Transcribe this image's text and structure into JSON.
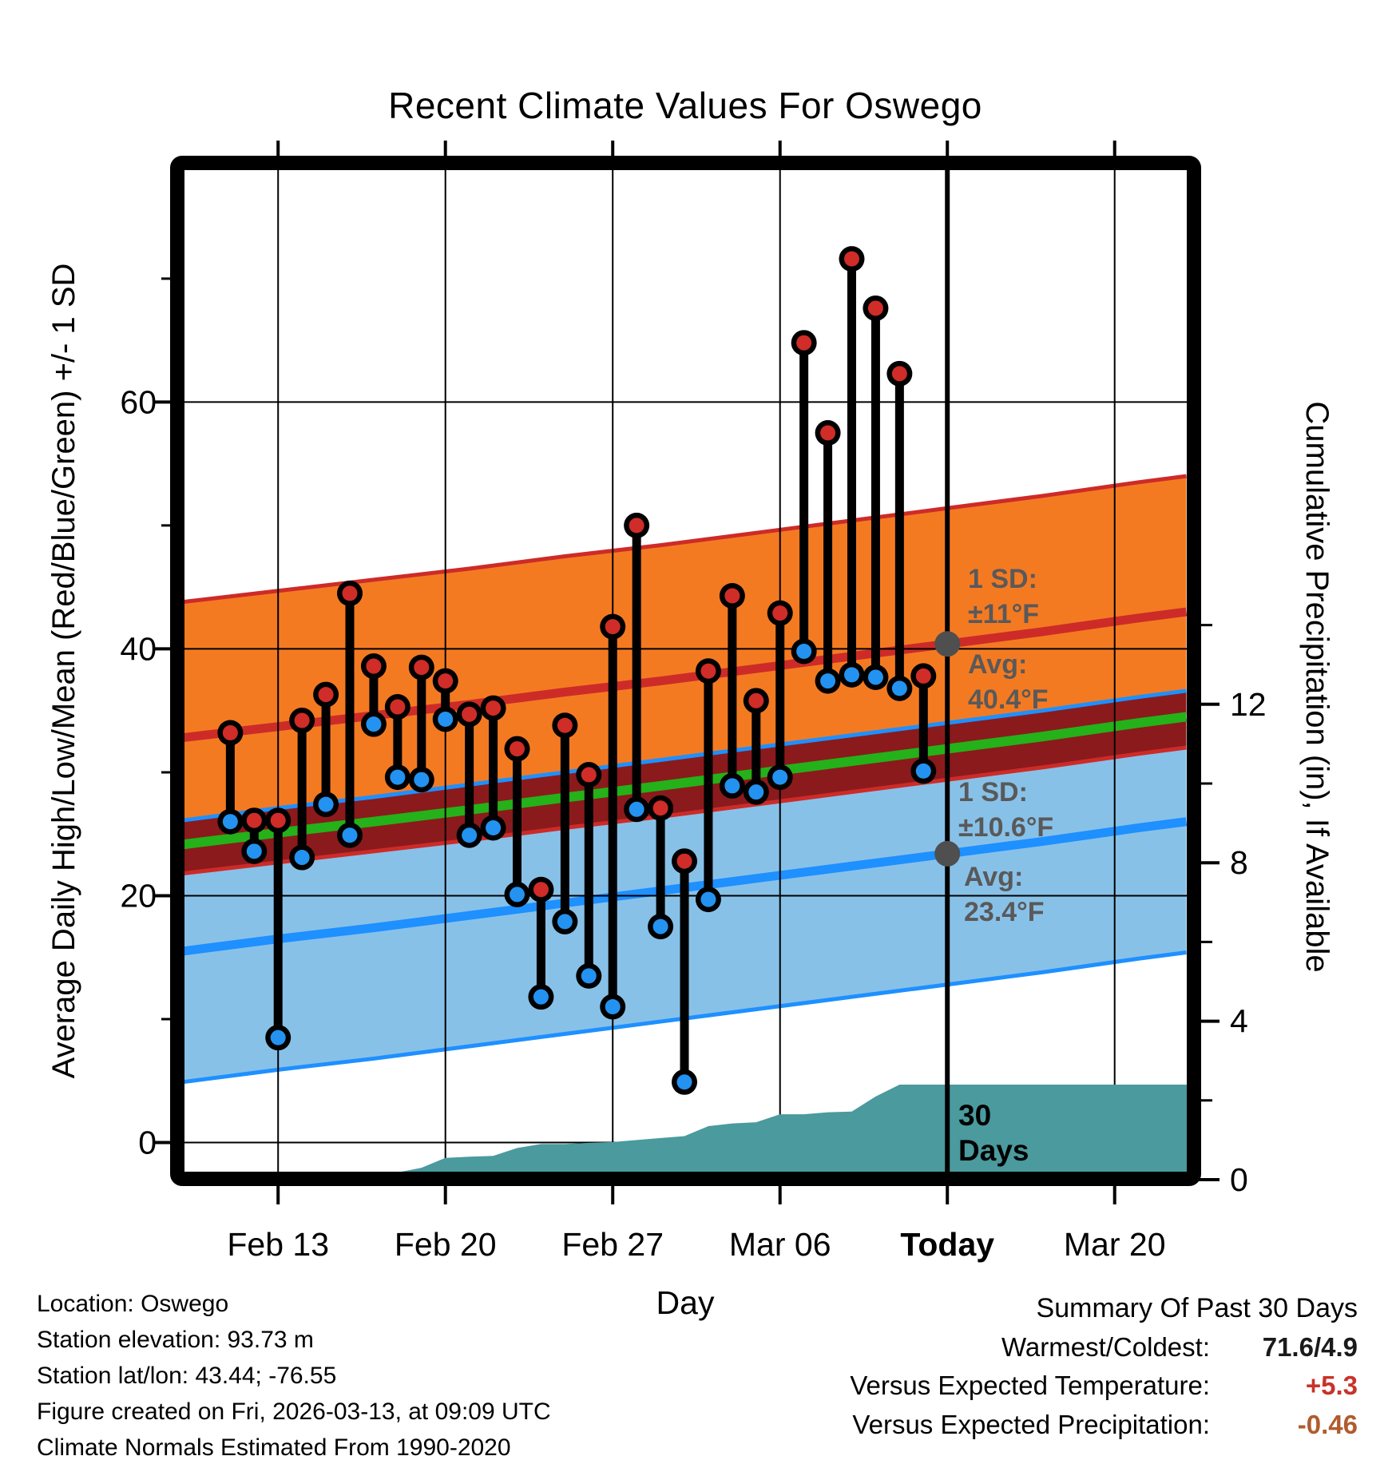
{
  "title": "Recent Climate Values For Oswego",
  "axes": {
    "x_label": "Day",
    "y_left_label": "Average Daily High/Low/Mean (Red/Blue/Green) +/- 1 SD",
    "y_right_label": "Cumulative Precipitation (in), If Available",
    "x_ticks": [
      {
        "label": "Feb 13",
        "offset": 0,
        "bold": false
      },
      {
        "label": "Feb 20",
        "offset": 7,
        "bold": false
      },
      {
        "label": "Feb 27",
        "offset": 14,
        "bold": false
      },
      {
        "label": "Mar 06",
        "offset": 21,
        "bold": false
      },
      {
        "label": "Today",
        "offset": 28,
        "bold": true
      },
      {
        "label": "Mar 20",
        "offset": 35,
        "bold": false
      }
    ],
    "y_left_ticks": [
      0,
      20,
      40,
      60
    ],
    "y_left_minor_ticks": [
      10,
      30,
      50,
      70
    ],
    "y_right_ticks": [
      0,
      4,
      8,
      12
    ],
    "y_right_minor_ticks": [
      2,
      6,
      10,
      14
    ]
  },
  "chart_data": {
    "type": "combo",
    "temp_axis": {
      "unit": "°F",
      "labeled_ticks": [
        0,
        20,
        40,
        60
      ]
    },
    "precip_axis": {
      "unit": "in",
      "labeled_ticks": [
        0,
        4,
        8,
        12
      ]
    },
    "today_offset": 28,
    "days": [
      {
        "date": "Feb 11",
        "offset": -2,
        "high": 33.2,
        "low": 26.0
      },
      {
        "date": "Feb 12",
        "offset": -1,
        "high": 26.1,
        "low": 23.6
      },
      {
        "date": "Feb 13",
        "offset": 0,
        "high": 26.1,
        "low": 8.5
      },
      {
        "date": "Feb 14",
        "offset": 1,
        "high": 34.2,
        "low": 23.1
      },
      {
        "date": "Feb 15",
        "offset": 2,
        "high": 36.3,
        "low": 27.4
      },
      {
        "date": "Feb 16",
        "offset": 3,
        "high": 44.5,
        "low": 24.9
      },
      {
        "date": "Feb 17",
        "offset": 4,
        "high": 38.6,
        "low": 33.9
      },
      {
        "date": "Feb 18",
        "offset": 5,
        "high": 35.3,
        "low": 29.6
      },
      {
        "date": "Feb 19",
        "offset": 6,
        "high": 38.5,
        "low": 29.4
      },
      {
        "date": "Feb 20",
        "offset": 7,
        "high": 37.4,
        "low": 34.3
      },
      {
        "date": "Feb 21",
        "offset": 8,
        "high": 34.7,
        "low": 24.9
      },
      {
        "date": "Feb 22",
        "offset": 9,
        "high": 35.2,
        "low": 25.5
      },
      {
        "date": "Feb 23",
        "offset": 10,
        "high": 31.9,
        "low": 20.1
      },
      {
        "date": "Feb 24",
        "offset": 11,
        "high": 20.5,
        "low": 11.8
      },
      {
        "date": "Feb 25",
        "offset": 12,
        "high": 33.8,
        "low": 17.9
      },
      {
        "date": "Feb 26",
        "offset": 13,
        "high": 29.8,
        "low": 13.5
      },
      {
        "date": "Feb 27",
        "offset": 14,
        "high": 41.8,
        "low": 11.0
      },
      {
        "date": "Feb 28",
        "offset": 15,
        "high": 50.0,
        "low": 27.0
      },
      {
        "date": "Mar 01",
        "offset": 16,
        "high": 27.1,
        "low": 17.5
      },
      {
        "date": "Mar 02",
        "offset": 17,
        "high": 22.8,
        "low": 4.9
      },
      {
        "date": "Mar 03",
        "offset": 18,
        "high": 38.2,
        "low": 19.7
      },
      {
        "date": "Mar 04",
        "offset": 19,
        "high": 44.3,
        "low": 28.9
      },
      {
        "date": "Mar 05",
        "offset": 20,
        "high": 35.8,
        "low": 28.4
      },
      {
        "date": "Mar 06",
        "offset": 21,
        "high": 42.9,
        "low": 29.6
      },
      {
        "date": "Mar 07",
        "offset": 22,
        "high": 64.8,
        "low": 39.8
      },
      {
        "date": "Mar 08",
        "offset": 23,
        "high": 57.5,
        "low": 37.4
      },
      {
        "date": "Mar 09",
        "offset": 24,
        "high": 71.6,
        "low": 37.9
      },
      {
        "date": "Mar 10",
        "offset": 25,
        "high": 67.6,
        "low": 37.7
      },
      {
        "date": "Mar 11",
        "offset": 26,
        "high": 62.3,
        "low": 36.8
      },
      {
        "date": "Mar 12",
        "offset": 27,
        "high": 37.8,
        "low": 30.1
      }
    ],
    "normals": {
      "offsets": [
        -4,
        0,
        4,
        8,
        12,
        16,
        20,
        24,
        28,
        32,
        36,
        38
      ],
      "high_avg": [
        32.8,
        33.7,
        34.6,
        35.5,
        36.5,
        37.4,
        38.4,
        39.4,
        40.4,
        41.4,
        42.5,
        43.0
      ],
      "low_avg": [
        15.5,
        16.5,
        17.4,
        18.4,
        19.4,
        20.4,
        21.4,
        22.4,
        23.4,
        24.4,
        25.5,
        26.0
      ],
      "high_sd": 11.0,
      "low_sd": 10.6,
      "high_avg_today": 40.4,
      "low_avg_today": 23.4
    },
    "precip": {
      "points": [
        {
          "offset": 5,
          "value": 0.0
        },
        {
          "offset": 6,
          "value": 0.3
        },
        {
          "offset": 7,
          "value": 0.55
        },
        {
          "offset": 8,
          "value": 0.58
        },
        {
          "offset": 9,
          "value": 0.6
        },
        {
          "offset": 10,
          "value": 0.8
        },
        {
          "offset": 11,
          "value": 0.9
        },
        {
          "offset": 12,
          "value": 0.9
        },
        {
          "offset": 13,
          "value": 0.93
        },
        {
          "offset": 14,
          "value": 0.95
        },
        {
          "offset": 15,
          "value": 1.0
        },
        {
          "offset": 16,
          "value": 1.05
        },
        {
          "offset": 17,
          "value": 1.1
        },
        {
          "offset": 18,
          "value": 1.35
        },
        {
          "offset": 19,
          "value": 1.42
        },
        {
          "offset": 20,
          "value": 1.45
        },
        {
          "offset": 21,
          "value": 1.65
        },
        {
          "offset": 22,
          "value": 1.65
        },
        {
          "offset": 23,
          "value": 1.7
        },
        {
          "offset": 24,
          "value": 1.72
        },
        {
          "offset": 25,
          "value": 2.1
        },
        {
          "offset": 26,
          "value": 2.4
        },
        {
          "offset": 27,
          "value": 2.4
        },
        {
          "offset": 28,
          "value": 2.4
        },
        {
          "offset": 38,
          "value": 2.4
        }
      ]
    },
    "annotations": {
      "high": {
        "sd_lines": [
          "1 SD:",
          "±11°F"
        ],
        "avg_lines": [
          "Avg:",
          "40.4°F"
        ]
      },
      "low": {
        "sd_lines": [
          "1 SD:",
          "±10.6°F"
        ],
        "avg_lines": [
          "Avg:",
          "23.4°F"
        ]
      },
      "period_lines": [
        "30",
        "Days"
      ]
    }
  },
  "colors": {
    "high_band": "#f47a22",
    "high_line": "#cd2b28",
    "overlap_band": "#8b1a1c",
    "mean_line": "#24b119",
    "low_band": "#88c1e8",
    "low_line": "#1e90ff",
    "precip_fill": "#4a9a9e",
    "dot_high": "#d02c28",
    "dot_low": "#2492f0",
    "today_marker": "#4f4f4f",
    "annotation_text": "#595959",
    "frame": "#000000"
  },
  "footer_left": {
    "lines": [
      "Location: Oswego",
      "Station elevation: 93.73 m",
      "Station lat/lon: 43.44; -76.55",
      "Figure created on Fri, 2026-03-13, at 09:09 UTC",
      "Climate Normals Estimated From 1990-2020"
    ]
  },
  "summary": {
    "title": "Summary Of Past 30 Days",
    "rows": [
      {
        "label": "Warmest/Coldest:",
        "value": "71.6/4.9",
        "color": "#1a1a1a"
      },
      {
        "label": "Versus Expected Temperature:",
        "value": "+5.3",
        "color": "#c7332b"
      },
      {
        "label": "Versus Expected Precipitation:",
        "value": "-0.46",
        "color": "#b05c2c"
      }
    ]
  }
}
